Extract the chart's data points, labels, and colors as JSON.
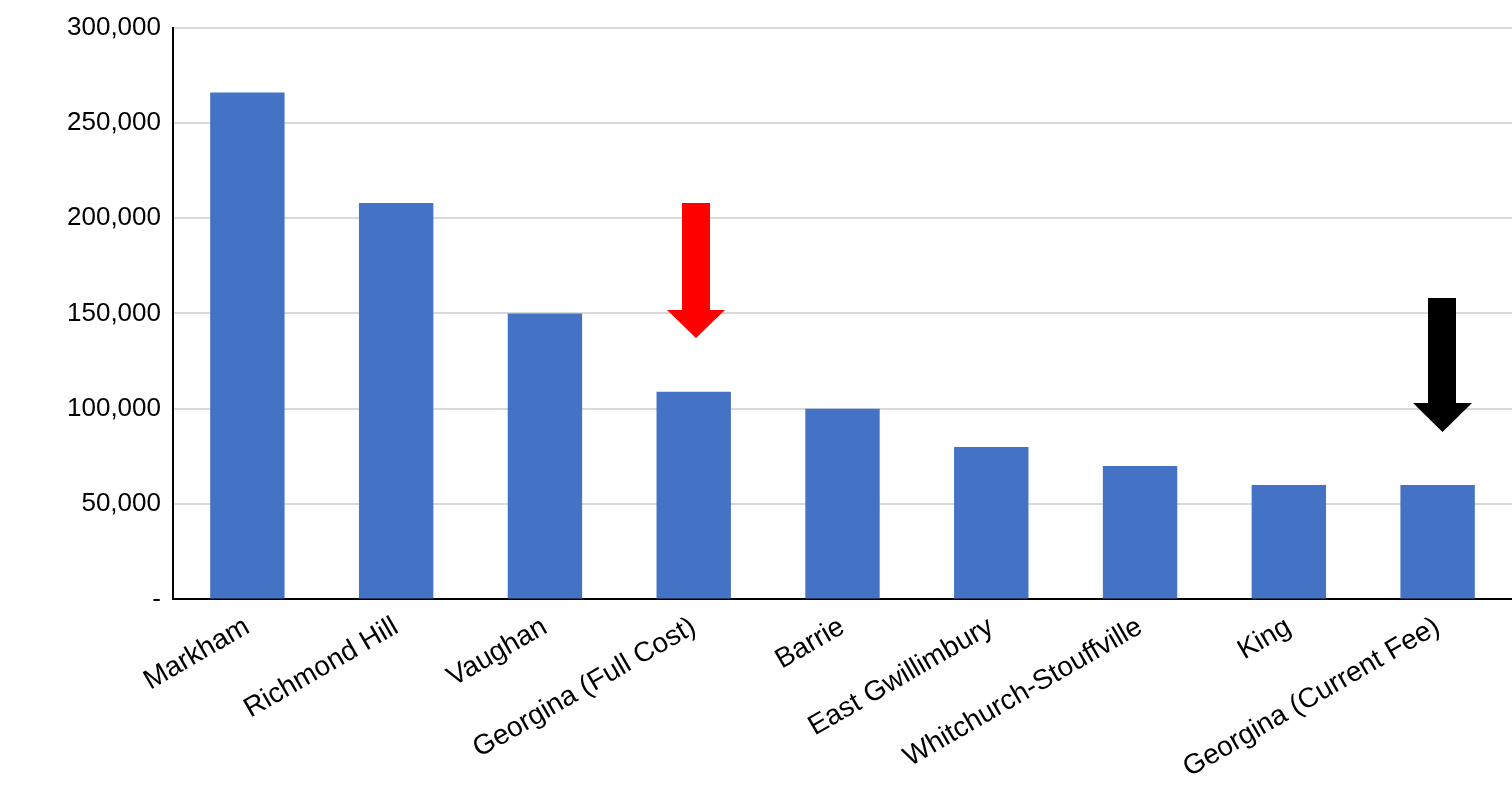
{
  "chart_data": {
    "type": "bar",
    "categories": [
      "Markham",
      "Richmond Hill",
      "Vaughan",
      "Georgina (Full Cost)",
      "Barrie",
      "East Gwillimbury",
      "Whitchurch-Stouffville",
      "King",
      "Georgina (Current Fee)"
    ],
    "values": [
      266000,
      208000,
      150000,
      109000,
      100000,
      80000,
      70000,
      60000,
      60000
    ],
    "color": "#4472c4",
    "ylim": [
      0,
      300000
    ],
    "yticks": [
      {
        "value": 0,
        "label": "-"
      },
      {
        "value": 50000,
        "label": "50,000"
      },
      {
        "value": 100000,
        "label": "100,000"
      },
      {
        "value": 150000,
        "label": "150,000"
      },
      {
        "value": 200000,
        "label": "200,000"
      },
      {
        "value": 250000,
        "label": "250,000"
      },
      {
        "value": 300000,
        "label": "300,000"
      }
    ],
    "grid": "y"
  }
}
